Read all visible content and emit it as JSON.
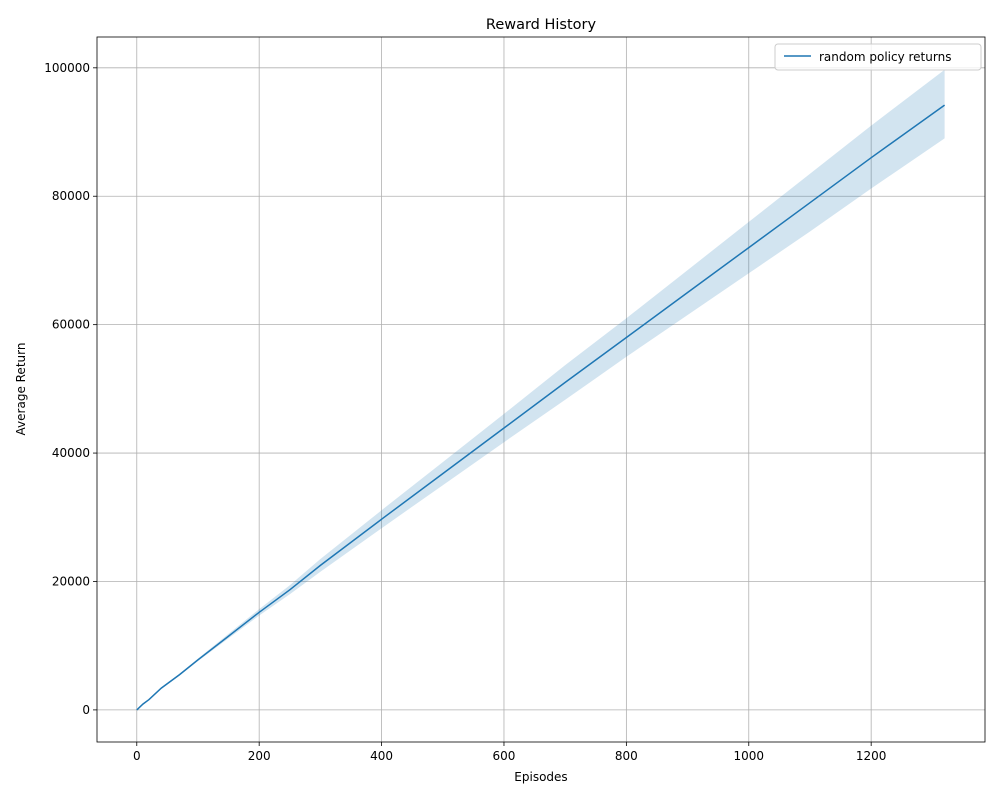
{
  "chart_data": {
    "type": "line",
    "title": "Reward History",
    "xlabel": "Episodes",
    "ylabel": "Average Return",
    "xlim": [
      -65,
      1386
    ],
    "ylim": [
      -5000,
      104800
    ],
    "xticks": [
      0,
      200,
      400,
      600,
      800,
      1000,
      1200
    ],
    "yticks": [
      0,
      20000,
      40000,
      60000,
      80000,
      100000
    ],
    "grid": true,
    "legend_position": "top-right",
    "colors": {
      "line": "#1f77b4",
      "band": "#1f77b4"
    },
    "series": [
      {
        "name": "random policy returns",
        "x": [
          0,
          10,
          20,
          40,
          70,
          100,
          150,
          200,
          250,
          300,
          400,
          500,
          600,
          700,
          800,
          900,
          1000,
          1100,
          1200,
          1320
        ],
        "y": [
          0,
          900,
          1600,
          3400,
          5500,
          7800,
          11500,
          15200,
          18700,
          22500,
          29700,
          36800,
          43900,
          51000,
          58000,
          65000,
          72000,
          79000,
          86000,
          94200
        ],
        "lower": [
          0,
          870,
          1550,
          3300,
          5350,
          7600,
          11150,
          14700,
          18000,
          21500,
          28300,
          35000,
          41700,
          48300,
          55000,
          61500,
          68000,
          74500,
          81200,
          89000
        ],
        "upper": [
          0,
          930,
          1650,
          3500,
          5650,
          8000,
          11850,
          15700,
          19400,
          23500,
          31100,
          38600,
          46100,
          53700,
          61000,
          68500,
          76000,
          83500,
          91000,
          99700
        ]
      }
    ]
  }
}
